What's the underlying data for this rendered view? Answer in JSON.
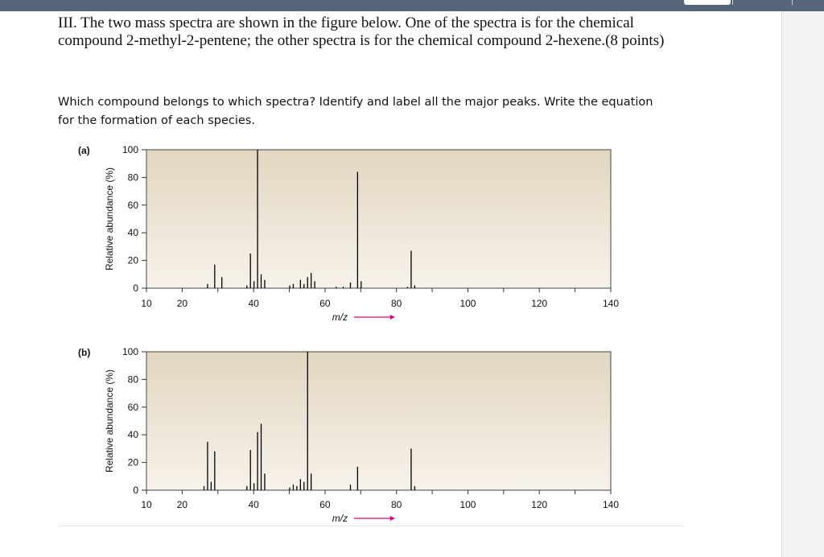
{
  "question": {
    "line1": "III. The two mass spectra are shown in the figure below. One of the spectra is for the chemical",
    "line2": "compound 2-methyl-2-pentene; the other spectra is for the chemical compound 2-hexene.(8 points)"
  },
  "subquestion": {
    "line1": "Which compound belongs to which spectra? Identify and label all the major peaks. Write the equation",
    "line2": "for the formation of each species."
  },
  "colors": {
    "plot_background": "#e8ddcb",
    "plot_gradient_top": "#e2d6c0",
    "plot_gradient_bottom": "#f7f2ea",
    "peak_line": "#000000",
    "axis_arrow": "#e3007b",
    "top_bar": "#55657a"
  },
  "chart_data": [
    {
      "type": "bar",
      "panel_label": "(a)",
      "ylabel": "Relative abundance (%)",
      "xlabel": "m/z",
      "xlim": [
        10,
        140
      ],
      "ylim": [
        0,
        100
      ],
      "xticks": [
        10,
        20,
        40,
        60,
        80,
        100,
        120,
        140
      ],
      "yticks": [
        0,
        20,
        40,
        60,
        80,
        100
      ],
      "peaks": [
        {
          "mz": 27,
          "value": 3
        },
        {
          "mz": 29,
          "value": 17
        },
        {
          "mz": 31,
          "value": 8
        },
        {
          "mz": 38,
          "value": 2
        },
        {
          "mz": 39,
          "value": 25
        },
        {
          "mz": 40,
          "value": 5
        },
        {
          "mz": 41,
          "value": 100
        },
        {
          "mz": 42,
          "value": 10
        },
        {
          "mz": 43,
          "value": 6
        },
        {
          "mz": 50,
          "value": 2
        },
        {
          "mz": 51,
          "value": 3
        },
        {
          "mz": 53,
          "value": 6
        },
        {
          "mz": 54,
          "value": 3
        },
        {
          "mz": 55,
          "value": 8
        },
        {
          "mz": 56,
          "value": 11
        },
        {
          "mz": 57,
          "value": 5
        },
        {
          "mz": 63,
          "value": 1
        },
        {
          "mz": 65,
          "value": 1
        },
        {
          "mz": 67,
          "value": 4
        },
        {
          "mz": 69,
          "value": 84
        },
        {
          "mz": 70,
          "value": 5
        },
        {
          "mz": 83,
          "value": 1
        },
        {
          "mz": 84,
          "value": 27
        },
        {
          "mz": 85,
          "value": 2
        }
      ]
    },
    {
      "type": "bar",
      "panel_label": "(b)",
      "ylabel": "Relative abundance (%)",
      "xlabel": "m/z",
      "xlim": [
        10,
        140
      ],
      "ylim": [
        0,
        100
      ],
      "xticks": [
        10,
        20,
        40,
        60,
        80,
        100,
        120,
        140
      ],
      "yticks": [
        0,
        20,
        40,
        60,
        80,
        100
      ],
      "peaks": [
        {
          "mz": 26,
          "value": 3
        },
        {
          "mz": 27,
          "value": 35
        },
        {
          "mz": 28,
          "value": 6
        },
        {
          "mz": 29,
          "value": 28
        },
        {
          "mz": 38,
          "value": 3
        },
        {
          "mz": 39,
          "value": 29
        },
        {
          "mz": 40,
          "value": 5
        },
        {
          "mz": 41,
          "value": 42
        },
        {
          "mz": 42,
          "value": 48
        },
        {
          "mz": 43,
          "value": 12
        },
        {
          "mz": 50,
          "value": 2
        },
        {
          "mz": 51,
          "value": 4
        },
        {
          "mz": 52,
          "value": 3
        },
        {
          "mz": 53,
          "value": 8
        },
        {
          "mz": 54,
          "value": 6
        },
        {
          "mz": 55,
          "value": 100
        },
        {
          "mz": 56,
          "value": 12
        },
        {
          "mz": 67,
          "value": 4
        },
        {
          "mz": 69,
          "value": 17
        },
        {
          "mz": 84,
          "value": 30
        },
        {
          "mz": 85,
          "value": 3
        }
      ]
    }
  ]
}
